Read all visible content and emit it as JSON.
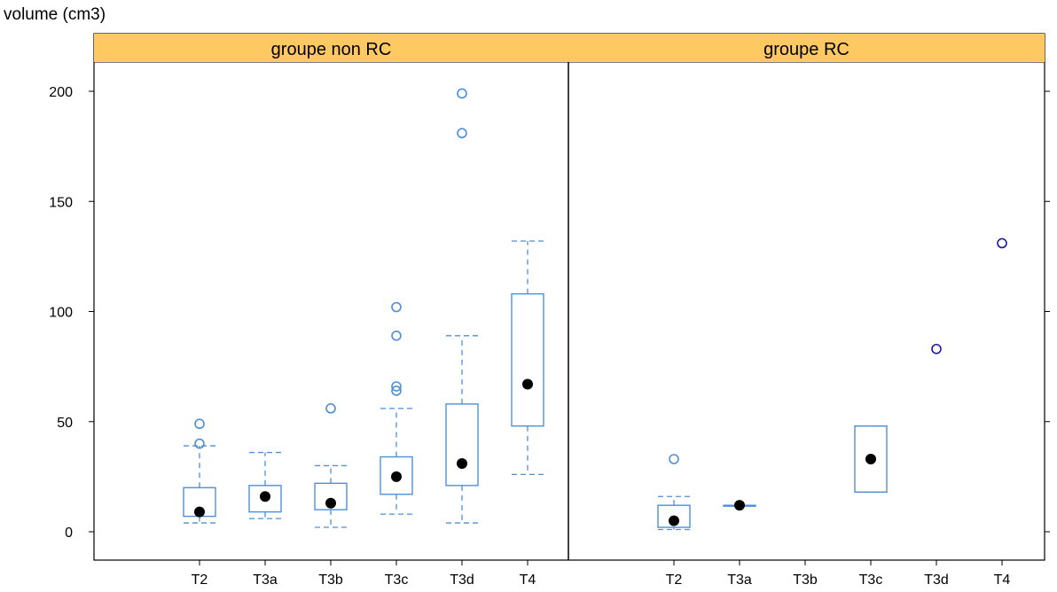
{
  "chart_data": {
    "type": "box",
    "ylabel": "volume (cm3)",
    "ylim": [
      -12,
      215
    ],
    "y_ticks": [
      0,
      50,
      100,
      150,
      200
    ],
    "categories": [
      "T2",
      "T3a",
      "T3b",
      "T3c",
      "T3d",
      "T4"
    ],
    "colors": {
      "strip": "#ffc961",
      "box": "#4f8fd6",
      "outlier_right": "#1a1aa8",
      "median": "#000000"
    },
    "panels": [
      {
        "title": "groupe non RC",
        "boxes": [
          {
            "category": "T2",
            "lower_whisker": 4,
            "q1": 7,
            "median": 9,
            "q3": 20,
            "upper_whisker": 39,
            "outliers": [
              40,
              49
            ]
          },
          {
            "category": "T3a",
            "lower_whisker": 6,
            "q1": 9,
            "median": 16,
            "q3": 21,
            "upper_whisker": 36,
            "outliers": []
          },
          {
            "category": "T3b",
            "lower_whisker": 2,
            "q1": 10,
            "median": 13,
            "q3": 22,
            "upper_whisker": 30,
            "outliers": [
              56
            ]
          },
          {
            "category": "T3c",
            "lower_whisker": 8,
            "q1": 17,
            "median": 25,
            "q3": 34,
            "upper_whisker": 56,
            "outliers": [
              64,
              66,
              89,
              102
            ]
          },
          {
            "category": "T3d",
            "lower_whisker": 4,
            "q1": 21,
            "median": 31,
            "q3": 58,
            "upper_whisker": 89,
            "outliers": [
              181,
              199
            ]
          },
          {
            "category": "T4",
            "lower_whisker": 26,
            "q1": 48,
            "median": 67,
            "q3": 108,
            "upper_whisker": 132,
            "outliers": []
          }
        ]
      },
      {
        "title": "groupe RC",
        "boxes": [
          {
            "category": "T2",
            "lower_whisker": 1,
            "q1": 2,
            "median": 5,
            "q3": 12,
            "upper_whisker": 16,
            "outliers": [
              33
            ]
          },
          {
            "category": "T3a",
            "lower_whisker": 12,
            "q1": 12,
            "median": 12,
            "q3": 12,
            "upper_whisker": 12,
            "outliers": []
          },
          {
            "category": "T3b",
            "lower_whisker": null,
            "q1": null,
            "median": null,
            "q3": null,
            "upper_whisker": null,
            "outliers": []
          },
          {
            "category": "T3c",
            "lower_whisker": 18,
            "q1": 18,
            "median": 33,
            "q3": 48,
            "upper_whisker": 48,
            "outliers": []
          },
          {
            "category": "T3d",
            "lower_whisker": null,
            "q1": null,
            "median": null,
            "q3": null,
            "upper_whisker": null,
            "outliers": [
              83
            ]
          },
          {
            "category": "T4",
            "lower_whisker": null,
            "q1": null,
            "median": null,
            "q3": null,
            "upper_whisker": null,
            "outliers": [
              131
            ]
          }
        ]
      }
    ]
  }
}
